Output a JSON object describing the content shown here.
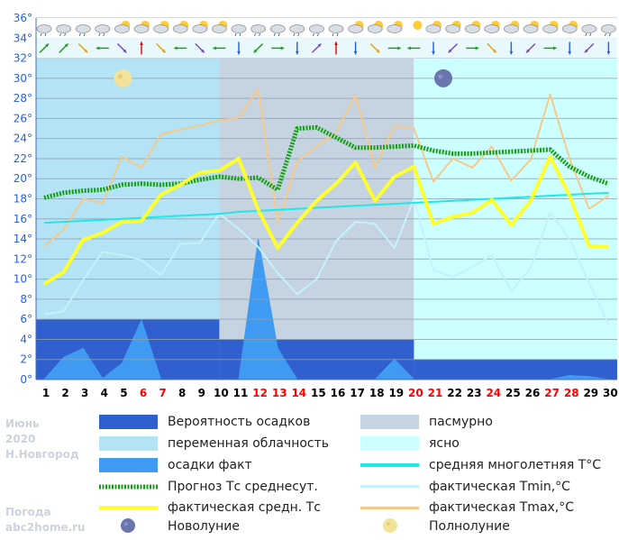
{
  "chart_data": {
    "type": "line",
    "y_unit": "°",
    "ylim": [
      0,
      36
    ],
    "y_ticks": [
      0,
      2,
      4,
      6,
      8,
      10,
      12,
      14,
      16,
      18,
      20,
      22,
      24,
      26,
      28,
      30,
      32,
      34,
      36
    ],
    "days": [
      1,
      2,
      3,
      4,
      5,
      6,
      7,
      8,
      9,
      10,
      11,
      12,
      13,
      14,
      15,
      16,
      17,
      18,
      19,
      20,
      21,
      22,
      23,
      24,
      25,
      26,
      27,
      28,
      29,
      30
    ],
    "weekend_days": [
      6,
      7,
      12,
      13,
      14,
      20,
      21,
      24,
      27,
      28
    ],
    "colors": {
      "plot_bg": "#ffffff",
      "overcast": "#c6d4e2",
      "partly_cloudy": "#b3e3f4",
      "clear": "#ccffff",
      "precip_prob": "#3060d0",
      "precip_fact": "#3f9bf2",
      "grid": "#8da0b4",
      "forecast": "#14a014",
      "fact_avg": "#ffff2e",
      "norm_avg": "#1ee8e8",
      "tmin": "#c4f2fc",
      "tmax": "#f5c98a",
      "y_axis_text": "#2b5fd8",
      "weekend_text": "#ff0000"
    },
    "cloud_bands": [
      {
        "from_day": 1,
        "to_day": 10,
        "type": "partly_cloudy"
      },
      {
        "from_day": 10,
        "to_day": 20,
        "type": "overcast"
      },
      {
        "from_day": 20,
        "to_day": 30,
        "type": "clear"
      }
    ],
    "precip_probability": [
      {
        "from_day": 1,
        "to_day": 10,
        "value": 6
      },
      {
        "from_day": 10,
        "to_day": 20,
        "value": 4
      },
      {
        "from_day": 20,
        "to_day": 30,
        "value": 2
      }
    ],
    "series": [
      {
        "name": "осадки факт",
        "key": "precip_fact",
        "values": [
          0,
          2.2,
          3.1,
          0.1,
          1.6,
          5.9,
          0,
          0,
          0,
          0,
          0,
          14,
          3.1,
          0,
          0,
          0,
          0,
          0,
          2,
          0,
          0,
          0,
          0,
          0,
          0,
          0,
          0,
          0.4,
          0.3,
          0
        ]
      },
      {
        "name": "Прогноз Тс среднесут.",
        "key": "forecast",
        "values": [
          18.1,
          18.6,
          18.8,
          18.9,
          19.4,
          19.5,
          19.4,
          19.5,
          19.9,
          20.2,
          20.0,
          20.1,
          18.9,
          25.0,
          25.1,
          24.1,
          23.1,
          23.1,
          23.2,
          23.3,
          22.8,
          22.5,
          22.5,
          22.6,
          22.7,
          22.8,
          22.9,
          21.2,
          20.2,
          19.5
        ]
      },
      {
        "name": "фактическая средн. Тс",
        "key": "fact_avg",
        "values": [
          9.5,
          10.7,
          13.9,
          14.6,
          15.7,
          15.8,
          18.4,
          19.4,
          20.6,
          20.8,
          22,
          16.9,
          13.1,
          15.6,
          17.8,
          19.5,
          21.6,
          17.8,
          20.2,
          21.2,
          15.5,
          16.2,
          16.6,
          17.9,
          15.4,
          17.8,
          22.2,
          18.3,
          13.3,
          13.2
        ]
      },
      {
        "name": "средняя многолетняя Т°С",
        "key": "norm_avg",
        "values": [
          15.6,
          15.7,
          15.8,
          15.9,
          16.0,
          16.1,
          16.2,
          16.3,
          16.4,
          16.5,
          16.7,
          16.8,
          16.9,
          17.0,
          17.1,
          17.2,
          17.3,
          17.4,
          17.5,
          17.6,
          17.7,
          17.8,
          17.9,
          18.0,
          18.1,
          18.2,
          18.3,
          18.4,
          18.5,
          18.6
        ]
      },
      {
        "name": "фактическая Tmin,°С",
        "key": "tmin",
        "values": [
          6.5,
          6.8,
          9.9,
          12.7,
          12.4,
          11.9,
          10.4,
          13.5,
          13.6,
          16.5,
          15.0,
          13.2,
          10.6,
          8.5,
          10.0,
          13.8,
          15.7,
          15.5,
          13.1,
          18.0,
          10.9,
          10.2,
          11.2,
          12.4,
          8.8,
          11.1,
          16.6,
          14.0,
          9.6,
          5.5
        ]
      },
      {
        "name": "фактическая Tmax,°С",
        "key": "tmax",
        "values": [
          13.3,
          14.9,
          18.0,
          17.6,
          22.2,
          21.1,
          24.4,
          24.9,
          25.3,
          25.8,
          26.1,
          28.9,
          15.6,
          21.7,
          23.2,
          24.6,
          28.3,
          21.1,
          25.3,
          25.0,
          19.7,
          22.0,
          21.1,
          23.2,
          19.8,
          21.9,
          28.4,
          22.0,
          17.0,
          18.3
        ]
      }
    ],
    "moon_phases": [
      {
        "day": 5,
        "type": "full"
      },
      {
        "day": 21,
        "type": "new"
      }
    ],
    "top_weather_icons": [
      "cloud-rain",
      "cloud-rain",
      "cloud-rain",
      "cloud-rain",
      "cloud-sun",
      "cloud-sun",
      "cloud-sun",
      "cloud-sun",
      "cloud-sun",
      "cloud-sun",
      "cloud-rain",
      "cloud-rain",
      "cloud-rain",
      "cloud-rain",
      "cloud-rain",
      "cloud-rain",
      "cloud-sun",
      "cloud-sun",
      "cloud-sun",
      "sun",
      "cloud-sun",
      "cloud-sun",
      "cloud-sun",
      "cloud-sun",
      "cloud-sun",
      "cloud-sun",
      "cloud-sun",
      "cloud-sun",
      "cloud-rain",
      "cloud-rain"
    ],
    "top_wind_arrows": [
      {
        "from": "SW",
        "color": "#14a014"
      },
      {
        "from": "SW",
        "color": "#14a014"
      },
      {
        "from": "NW",
        "color": "#e8a000"
      },
      {
        "from": "E",
        "color": "#14a014"
      },
      {
        "from": "NW",
        "color": "#8040c0"
      },
      {
        "from": "S",
        "color": "#e00000"
      },
      {
        "from": "NW",
        "color": "#e8a000"
      },
      {
        "from": "E",
        "color": "#14a014"
      },
      {
        "from": "NW",
        "color": "#8040c0"
      },
      {
        "from": "E",
        "color": "#14a014"
      },
      {
        "from": "N",
        "color": "#2060e0"
      },
      {
        "from": "NE",
        "color": "#14a014"
      },
      {
        "from": "W",
        "color": "#14a014"
      },
      {
        "from": "N",
        "color": "#2060e0"
      },
      {
        "from": "SW",
        "color": "#8040c0"
      },
      {
        "from": "S",
        "color": "#e00000"
      },
      {
        "from": "N",
        "color": "#2060e0"
      },
      {
        "from": "NW",
        "color": "#e8a000"
      },
      {
        "from": "W",
        "color": "#14a014"
      },
      {
        "from": "E",
        "color": "#14a014"
      },
      {
        "from": "N",
        "color": "#2060e0"
      },
      {
        "from": "NE",
        "color": "#8040c0"
      },
      {
        "from": "W",
        "color": "#14a014"
      },
      {
        "from": "NW",
        "color": "#e8a000"
      },
      {
        "from": "N",
        "color": "#2060e0"
      },
      {
        "from": "NE",
        "color": "#8040c0"
      },
      {
        "from": "W",
        "color": "#14a014"
      },
      {
        "from": "N",
        "color": "#2060e0"
      },
      {
        "from": "NE",
        "color": "#8040c0"
      },
      {
        "from": "N",
        "color": "#2060e0"
      }
    ]
  },
  "legend": {
    "precip_prob": "Вероятность осадков",
    "overcast": "пасмурно",
    "partly_cloudy": "переменная облачность",
    "clear": "ясно",
    "precip_fact": "осадки факт",
    "norm_avg": "средняя многолетняя Т°С",
    "forecast": "Прогноз Тс среднесут.",
    "tmin": "фактическая Tmin,°С",
    "fact_avg": "фактическая средн. Тс",
    "tmax": "фактическая Tmax,°С",
    "new_moon": "Новолуние",
    "full_moon": "Полнолуние"
  },
  "meta": {
    "month": "Июнь",
    "year": "2020",
    "city": "Н.Новгород",
    "site_line1": "Погода",
    "site_line2": "abc2home.ru"
  }
}
